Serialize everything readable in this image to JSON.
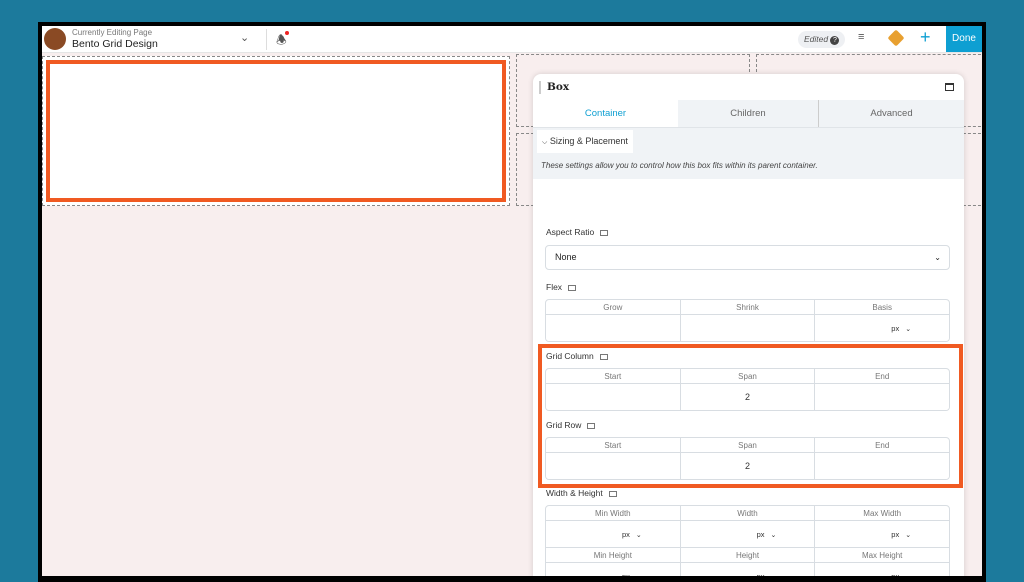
{
  "topbar": {
    "editing_label": "Currently Editing Page",
    "page_title": "Bento Grid Design",
    "status": "Edited",
    "done_label": "Done"
  },
  "panel": {
    "title": "Box",
    "tabs": [
      "Container",
      "Children",
      "Advanced"
    ],
    "active_tab": "Container",
    "section": "Sizing & Placement",
    "description": "These settings allow you to control how this box fits within its parent container.",
    "aspect_ratio": {
      "label": "Aspect Ratio",
      "value": "None"
    },
    "flex": {
      "label": "Flex",
      "headers": [
        "Grow",
        "Shrink",
        "Basis"
      ],
      "unit": "px"
    },
    "grid_column": {
      "label": "Grid Column",
      "headers": [
        "Start",
        "Span",
        "End"
      ],
      "span": "2"
    },
    "grid_row": {
      "label": "Grid Row",
      "headers": [
        "Start",
        "Span",
        "End"
      ],
      "span": "2"
    },
    "width_height": {
      "label": "Width & Height",
      "headers1": [
        "Min Width",
        "Width",
        "Max Width"
      ],
      "headers2": [
        "Min Height",
        "Height",
        "Max Height"
      ],
      "unit": "px"
    }
  },
  "colors": {
    "accent": "#0e9fd2",
    "highlight": "#f05a22",
    "background": "#1c7a9c"
  }
}
